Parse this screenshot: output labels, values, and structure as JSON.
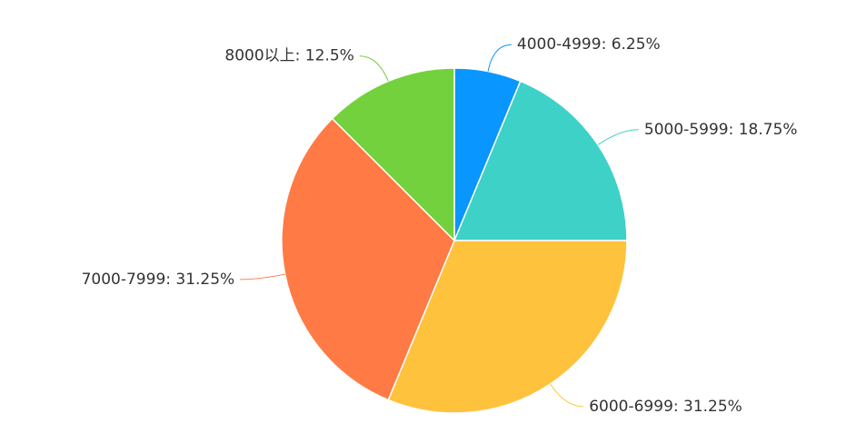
{
  "chart_data": {
    "type": "pie",
    "values": [
      6.25,
      18.75,
      31.25,
      31.25,
      12.5
    ],
    "value_labels": [
      "4000-4999: 6.25%",
      "5000-5999: 18.75%",
      "6000-6999: 31.25%",
      "7000-7999: 31.25%",
      "8000以上: 12.5%"
    ],
    "colors": [
      "#0a96ff",
      "#3dd1c8",
      "#ffc23d",
      "#ff7a45",
      "#73d13d"
    ]
  }
}
